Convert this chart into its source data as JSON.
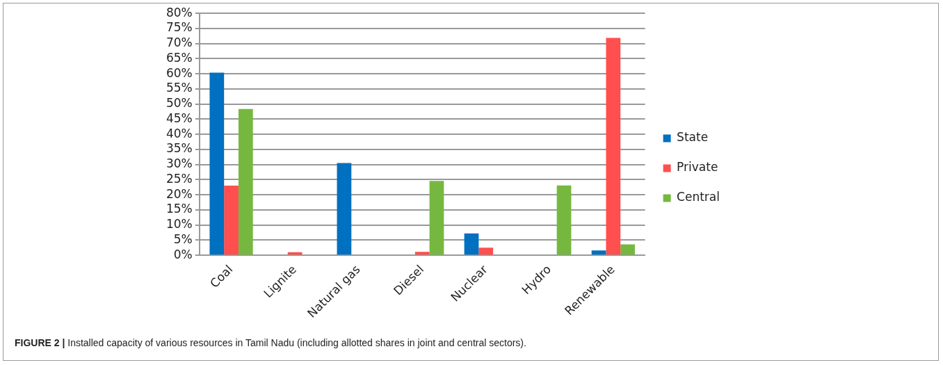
{
  "chart_data": {
    "type": "bar",
    "categories": [
      "Coal",
      "Lignite",
      "Natural gas",
      "Diesel",
      "Nuclear",
      "Hydro",
      "Renewable"
    ],
    "series": [
      {
        "name": "State",
        "color": "#0070c0",
        "values": [
          60.4,
          0,
          30.5,
          0,
          7.2,
          0,
          1.6
        ]
      },
      {
        "name": "Private",
        "color": "#ff4f4f",
        "values": [
          23.0,
          1.0,
          0,
          1.1,
          2.5,
          0,
          71.9
        ]
      },
      {
        "name": "Central",
        "color": "#76b83f",
        "values": [
          48.4,
          0,
          0,
          24.6,
          0,
          23.1,
          3.6
        ]
      }
    ],
    "ylim": [
      0,
      80
    ],
    "yticks": [
      {
        "value": 0,
        "label": "0%"
      },
      {
        "value": 5,
        "label": "5%"
      },
      {
        "value": 10,
        "label": "10%"
      },
      {
        "value": 15,
        "label": "15%"
      },
      {
        "value": 20,
        "label": "20%"
      },
      {
        "value": 25,
        "label": "25%"
      },
      {
        "value": 30,
        "label": "30%"
      },
      {
        "value": 35,
        "label": "35%"
      },
      {
        "value": 40,
        "label": "40%"
      },
      {
        "value": 45,
        "label": "45%"
      },
      {
        "value": 50,
        "label": "50%"
      },
      {
        "value": 55,
        "label": "55%"
      },
      {
        "value": 60,
        "label": "60%"
      },
      {
        "value": 65,
        "label": "65%"
      },
      {
        "value": 70,
        "label": "70%"
      },
      {
        "value": 75,
        "label": "75%"
      },
      {
        "value": 80,
        "label": "80%"
      }
    ],
    "grid": "y",
    "legend": "right",
    "annotations": [
      "FIGURE 2 | Installed capacity of various resources in Tamil Nadu (including allotted shares in joint and central sectors)."
    ]
  }
}
